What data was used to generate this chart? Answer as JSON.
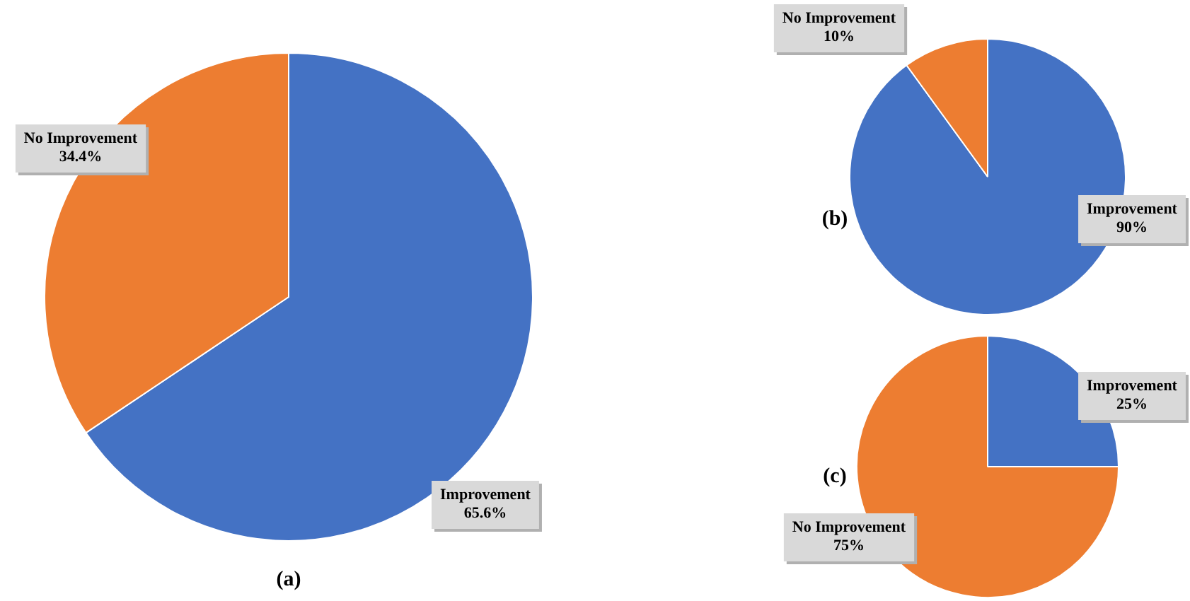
{
  "chart_data": [
    {
      "type": "pie",
      "title": "(a)",
      "categories": [
        "Improvement",
        "No Improvement"
      ],
      "values": [
        65.6,
        34.4
      ],
      "colors": [
        "#4472c4",
        "#ed7d31"
      ],
      "value_labels": [
        "65.6%",
        "34.4%"
      ],
      "legend": false
    },
    {
      "type": "pie",
      "title": "(b)",
      "categories": [
        "Improvement",
        "No Improvement"
      ],
      "values": [
        90,
        10
      ],
      "colors": [
        "#4472c4",
        "#ed7d31"
      ],
      "value_labels": [
        "90%",
        "10%"
      ],
      "legend": false
    },
    {
      "type": "pie",
      "title": "(c)",
      "categories": [
        "Improvement",
        "No Improvement"
      ],
      "values": [
        25,
        75
      ],
      "colors": [
        "#4472c4",
        "#ed7d31"
      ],
      "value_labels": [
        "25%",
        "75%"
      ],
      "legend": false
    }
  ]
}
